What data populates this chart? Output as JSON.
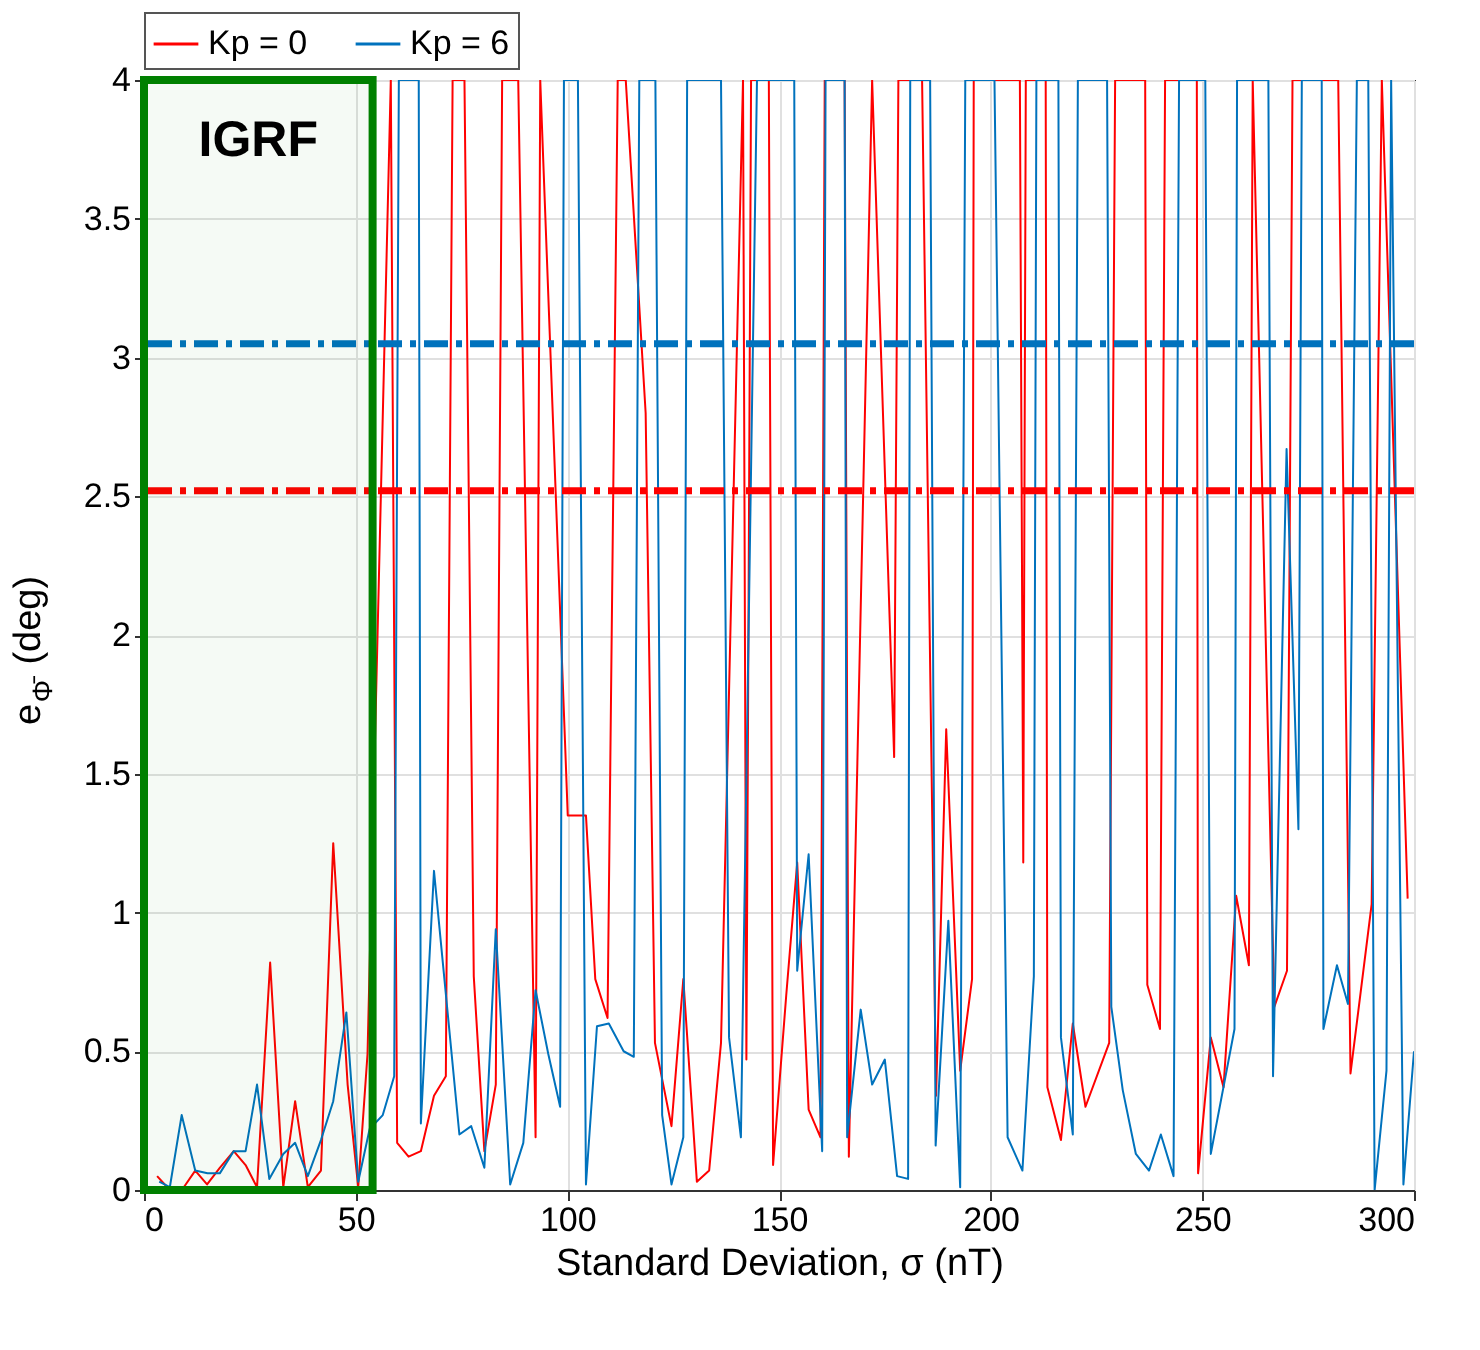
{
  "chart_data": {
    "type": "line",
    "xlabel": "Standard Deviation, σ (nT)",
    "ylabel": "e$_{Φ̄}$ (deg)",
    "xlim": [
      0,
      300
    ],
    "xticks": [
      0,
      50,
      100,
      150,
      200,
      250,
      300
    ],
    "ylim": [
      0,
      4
    ],
    "yticks": [
      0,
      0.5,
      1,
      1.5,
      2,
      2.5,
      3,
      3.5,
      4
    ],
    "grid": true,
    "legend": "top left",
    "marker": "none",
    "line_style": "solid",
    "series": [
      {
        "name": "Kp = 0",
        "color": "#ff0000",
        "x": [
          3.1,
          5.5,
          9.4,
          12.1,
          14.9,
          17.9,
          21.2,
          24,
          26.7,
          29.8,
          32.9,
          35.7,
          38.7,
          41.8,
          44.7,
          48.1,
          50.6,
          52.8,
          58.3,
          59.8,
          62.5,
          65.4,
          68.5,
          71.3,
          72.9,
          75.7,
          77.9,
          80.4,
          83.1,
          84.6,
          88.4,
          92.5,
          93.6,
          100.1,
          104.4,
          106.6,
          109.5,
          111.9,
          113.8,
          118.5,
          120.7,
          124.6,
          127.4,
          130.6,
          133.5,
          136.3,
          141.5,
          142.3,
          143.4,
          147.6,
          148.6,
          151.7,
          154.3,
          157,
          159.8,
          160.8,
          165.5,
          166.5,
          172,
          177.2,
          178.2,
          183.8,
          187.1,
          189.5,
          192.8,
          195.6,
          196,
          206.9,
          207.7,
          208.3,
          213,
          213.4,
          216.6,
          219.4,
          222.4,
          228,
          229.4,
          236.5,
          237,
          240,
          241.2,
          248.7,
          249,
          252,
          255,
          258,
          261,
          261.9,
          267,
          270,
          271.3,
          282.1,
          285,
          290,
          292.4,
          298.5
        ],
        "values": [
          0.05,
          0.01,
          0.01,
          0.07,
          0.02,
          0.08,
          0.14,
          0.09,
          0.01,
          0.82,
          0.01,
          0.32,
          0.01,
          0.07,
          1.25,
          0.38,
          0.01,
          0.49,
          4,
          0.17,
          0.12,
          0.14,
          0.34,
          0.41,
          4,
          4,
          0.77,
          0.14,
          0.38,
          4,
          4,
          0.19,
          4,
          1.35,
          1.35,
          0.76,
          0.62,
          4,
          4,
          2.8,
          0.53,
          0.23,
          0.76,
          0.03,
          0.07,
          0.53,
          4,
          0.47,
          4,
          4,
          0.09,
          0.7,
          1.18,
          0.29,
          0.19,
          4,
          4,
          0.12,
          4,
          1.56,
          4,
          4,
          0.34,
          1.66,
          0.43,
          0.76,
          4,
          4,
          1.18,
          4,
          4,
          0.37,
          0.18,
          0.6,
          0.3,
          0.53,
          4,
          4,
          0.74,
          0.58,
          4,
          4,
          0.06,
          0.55,
          0.37,
          1.06,
          0.81,
          4,
          0.66,
          0.79,
          4,
          4,
          0.42,
          1.03,
          4,
          1.05
        ]
      },
      {
        "name": "Kp = 6",
        "color": "#0072bd",
        "x": [
          3.6,
          6.1,
          8.9,
          12.1,
          15,
          17.9,
          21.2,
          24,
          26.7,
          29.6,
          32.9,
          35.7,
          38.7,
          41.8,
          44.7,
          47.8,
          50.6,
          53.3,
          56.4,
          59.1,
          60.2,
          64.9,
          65.4,
          68.5,
          74.5,
          77.3,
          80.4,
          83.1,
          86.5,
          89.6,
          92.5,
          95.5,
          98.3,
          99.2,
          102.5,
          104.4,
          107,
          109.8,
          113.3,
          115.7,
          117,
          120.8,
          122.4,
          124.6,
          127.4,
          128.3,
          136.3,
          138.2,
          141,
          144.8,
          149,
          153.6,
          154.3,
          157,
          160.2,
          161,
          165.5,
          166.1,
          169.3,
          172,
          175,
          177.9,
          180.5,
          181,
          185.7,
          187,
          190,
          192.8,
          194,
          200.9,
          204,
          207.5,
          210.2,
          210.8,
          216,
          216.6,
          219.4,
          220.6,
          227.5,
          228.5,
          231.2,
          234.3,
          237.4,
          240.2,
          243.2,
          244.5,
          250.7,
          252,
          257.6,
          258.2,
          265.6,
          266.7,
          269.9,
          272.7,
          273.5,
          278.2,
          278.6,
          281.8,
          284.4,
          286.5,
          289.2,
          290.7,
          293.5,
          294.6,
          297.5,
          300
        ],
        "values": [
          0.03,
          0.01,
          0.27,
          0.07,
          0.06,
          0.06,
          0.14,
          0.14,
          0.38,
          0.04,
          0.13,
          0.17,
          0.05,
          0.18,
          0.32,
          0.64,
          0.03,
          0.22,
          0.27,
          0.41,
          4,
          4,
          0.24,
          1.15,
          0.2,
          0.23,
          0.08,
          0.94,
          0.02,
          0.17,
          0.72,
          0.49,
          0.3,
          4,
          4,
          0.02,
          0.59,
          0.6,
          0.5,
          0.48,
          4,
          4,
          0.27,
          0.02,
          0.19,
          4,
          4,
          0.55,
          0.19,
          4,
          4,
          4,
          0.79,
          1.21,
          0.14,
          4,
          4,
          0.19,
          0.65,
          0.38,
          0.47,
          0.05,
          0.04,
          4,
          4,
          0.16,
          0.97,
          0.01,
          4,
          4,
          0.19,
          0.07,
          0.77,
          4,
          4,
          0.55,
          0.2,
          4,
          4,
          0.66,
          0.36,
          0.13,
          0.07,
          0.2,
          0.05,
          4,
          4,
          0.13,
          0.58,
          4,
          4,
          0.41,
          2.67,
          1.3,
          4,
          4,
          0.58,
          0.81,
          0.67,
          4,
          4,
          0,
          0.43,
          4,
          0.02,
          0.5
        ]
      }
    ],
    "ref_lines": [
      {
        "axis": "y",
        "value": 3.05,
        "color": "#0072bd",
        "line_style": "dashdot"
      },
      {
        "axis": "y",
        "value": 2.52,
        "color": "#ff0000",
        "line_style": "dashdot"
      }
    ],
    "bands": [
      {
        "axis": "x",
        "from": 0,
        "to": 54,
        "label": "IGRF",
        "color": "#008000"
      }
    ]
  }
}
